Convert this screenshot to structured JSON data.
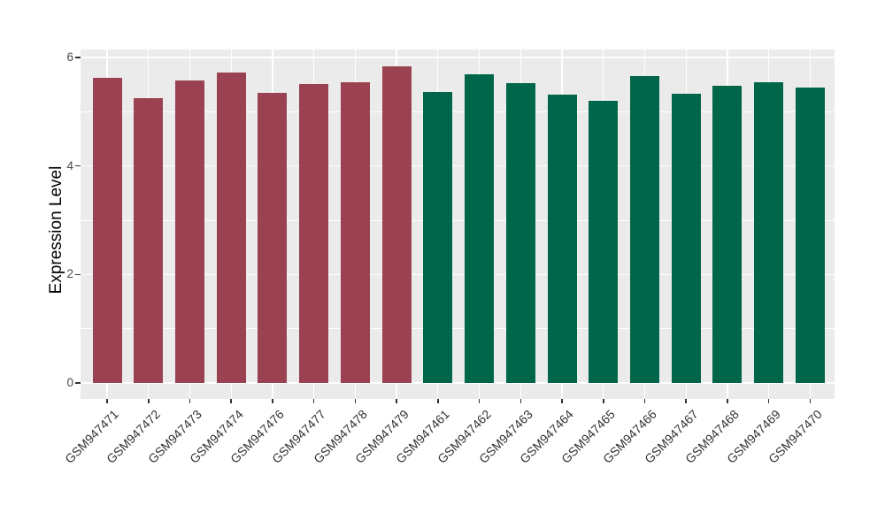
{
  "chart_data": {
    "type": "bar",
    "title": "",
    "xlabel": "",
    "ylabel": "Expression Level",
    "ylim": [
      0,
      6.15
    ],
    "yticks_major": [
      0,
      2,
      4,
      6
    ],
    "yticks_minor": [
      1,
      3,
      5
    ],
    "grid": "major and minor white gridlines on gray panel, ggplot style",
    "legend": "none",
    "bars": [
      {
        "label": "GSM947471",
        "value": 5.62,
        "group": "groupA"
      },
      {
        "label": "GSM947472",
        "value": 5.25,
        "group": "groupA"
      },
      {
        "label": "GSM947473",
        "value": 5.58,
        "group": "groupA"
      },
      {
        "label": "GSM947474",
        "value": 5.73,
        "group": "groupA"
      },
      {
        "label": "GSM947476",
        "value": 5.34,
        "group": "groupA"
      },
      {
        "label": "GSM947477",
        "value": 5.51,
        "group": "groupA"
      },
      {
        "label": "GSM947478",
        "value": 5.54,
        "group": "groupA"
      },
      {
        "label": "GSM947479",
        "value": 5.84,
        "group": "groupA"
      },
      {
        "label": "GSM947461",
        "value": 5.36,
        "group": "groupB"
      },
      {
        "label": "GSM947462",
        "value": 5.69,
        "group": "groupB"
      },
      {
        "label": "GSM947463",
        "value": 5.53,
        "group": "groupB"
      },
      {
        "label": "GSM947464",
        "value": 5.32,
        "group": "groupB"
      },
      {
        "label": "GSM947465",
        "value": 5.2,
        "group": "groupB"
      },
      {
        "label": "GSM947466",
        "value": 5.66,
        "group": "groupB"
      },
      {
        "label": "GSM947467",
        "value": 5.33,
        "group": "groupB"
      },
      {
        "label": "GSM947468",
        "value": 5.48,
        "group": "groupB"
      },
      {
        "label": "GSM947469",
        "value": 5.54,
        "group": "groupB"
      },
      {
        "label": "GSM947470",
        "value": 5.45,
        "group": "groupB"
      }
    ],
    "group_colors": {
      "groupA": "#9A4251",
      "groupB": "#00664A"
    }
  },
  "colors": {
    "page_bg": "#FFFFFF",
    "panel_bg": "#EBEBEB",
    "grid": "#FFFFFF",
    "axis_text": "#4a4a4a",
    "tick_mark": "#333333"
  }
}
